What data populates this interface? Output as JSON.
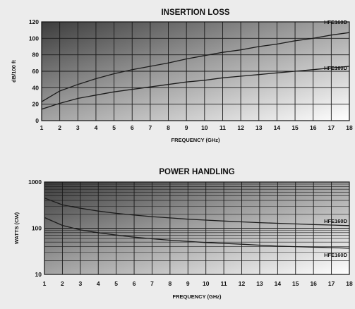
{
  "chart_data": [
    {
      "type": "line",
      "title": "INSERTION LOSS",
      "xlabel": "FREQUENCY (GHz)",
      "ylabel": "dB/100 ft",
      "xlim": [
        1,
        18
      ],
      "ylim": [
        0,
        120
      ],
      "x_ticks": [
        1,
        2,
        3,
        4,
        5,
        6,
        7,
        8,
        9,
        10,
        11,
        12,
        13,
        14,
        15,
        16,
        17,
        18
      ],
      "y_ticks": [
        0,
        20,
        40,
        60,
        80,
        100,
        120
      ],
      "y_scale": "linear",
      "grid": true,
      "series": [
        {
          "name": "HFE160D",
          "x": [
            1,
            2,
            3,
            4,
            5,
            6,
            7,
            8,
            9,
            10,
            11,
            12,
            13,
            14,
            15,
            16,
            17,
            18
          ],
          "values": [
            23,
            36,
            44,
            51,
            57,
            62,
            66,
            70,
            75,
            79,
            83,
            86,
            90,
            93,
            97,
            100,
            104,
            107
          ]
        },
        {
          "name": "HFE160D",
          "x": [
            1,
            2,
            3,
            4,
            5,
            6,
            7,
            8,
            9,
            10,
            11,
            12,
            13,
            14,
            15,
            16,
            17,
            18
          ],
          "values": [
            14,
            21,
            27,
            31,
            35,
            38,
            41,
            44,
            47,
            49,
            52,
            54,
            56,
            58,
            60,
            62,
            64,
            66
          ]
        }
      ]
    },
    {
      "type": "line",
      "title": "POWER HANDLING",
      "xlabel": "FREQUENCY (GHz)",
      "ylabel": "WATTS (CW)",
      "xlim": [
        1,
        18
      ],
      "ylim": [
        10,
        1000
      ],
      "x_ticks": [
        1,
        2,
        3,
        4,
        5,
        6,
        7,
        8,
        9,
        10,
        11,
        12,
        13,
        14,
        15,
        16,
        17,
        18
      ],
      "y_ticks": [
        10,
        100,
        1000
      ],
      "y_scale": "log",
      "grid": true,
      "series": [
        {
          "name": "HFE160D",
          "x": [
            1,
            2,
            3,
            4,
            5,
            6,
            7,
            8,
            9,
            10,
            11,
            12,
            13,
            14,
            15,
            16,
            17,
            18
          ],
          "values": [
            450,
            320,
            270,
            235,
            210,
            192,
            178,
            167,
            157,
            150,
            143,
            137,
            132,
            128,
            124,
            120,
            117,
            114
          ]
        },
        {
          "name": "HFE160D",
          "x": [
            1,
            2,
            3,
            4,
            5,
            6,
            7,
            8,
            9,
            10,
            11,
            12,
            13,
            14,
            15,
            16,
            17,
            18
          ],
          "values": [
            170,
            115,
            92,
            80,
            71,
            64,
            59,
            55,
            52,
            49,
            47,
            45,
            43,
            41,
            40,
            39,
            38,
            37
          ]
        }
      ]
    }
  ]
}
